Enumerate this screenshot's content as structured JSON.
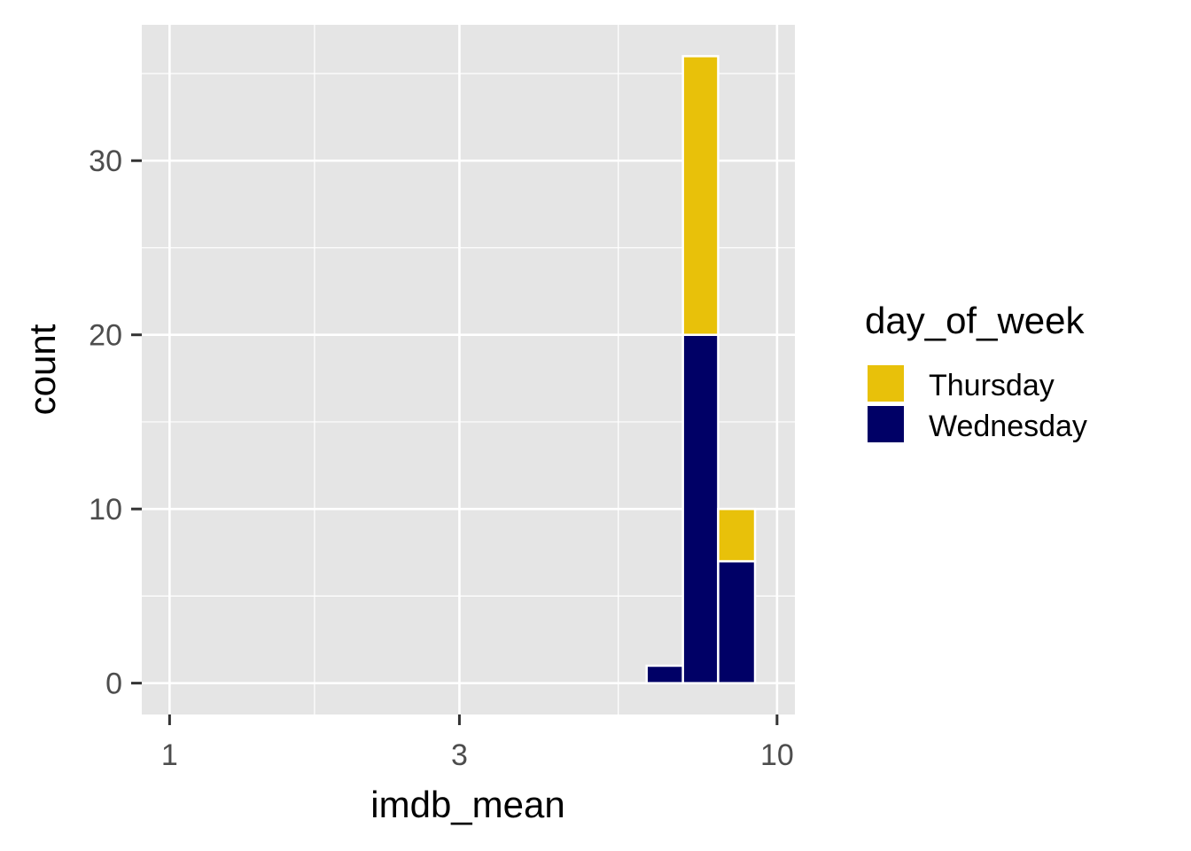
{
  "chart_data": {
    "type": "bar",
    "subtype": "stacked-histogram",
    "title": "",
    "xlabel": "imdb_mean",
    "ylabel": "count",
    "x_scale": "log10",
    "xlim": [
      0.9,
      10.7
    ],
    "ylim": [
      -1.8,
      37.8
    ],
    "x_ticks": [
      1,
      3,
      10
    ],
    "x_tick_labels": [
      "1",
      "3",
      "10"
    ],
    "y_ticks": [
      0,
      10,
      20,
      30
    ],
    "y_tick_labels": [
      "0",
      "10",
      "20",
      "30"
    ],
    "grid": true,
    "bins": [
      {
        "x_min": 6.1,
        "x_max": 7.0
      },
      {
        "x_min": 7.0,
        "x_max": 8.0
      },
      {
        "x_min": 8.0,
        "x_max": 9.2
      }
    ],
    "series": [
      {
        "name": "Wednesday",
        "color": "#000066",
        "values": [
          1,
          20,
          7
        ]
      },
      {
        "name": "Thursday",
        "color": "#E8C10A",
        "values": [
          0,
          16,
          3
        ]
      }
    ],
    "legend": {
      "title": "day_of_week",
      "position": "right",
      "entries": [
        {
          "label": "Thursday",
          "color": "#E8C10A"
        },
        {
          "label": "Wednesday",
          "color": "#000066"
        }
      ]
    }
  }
}
